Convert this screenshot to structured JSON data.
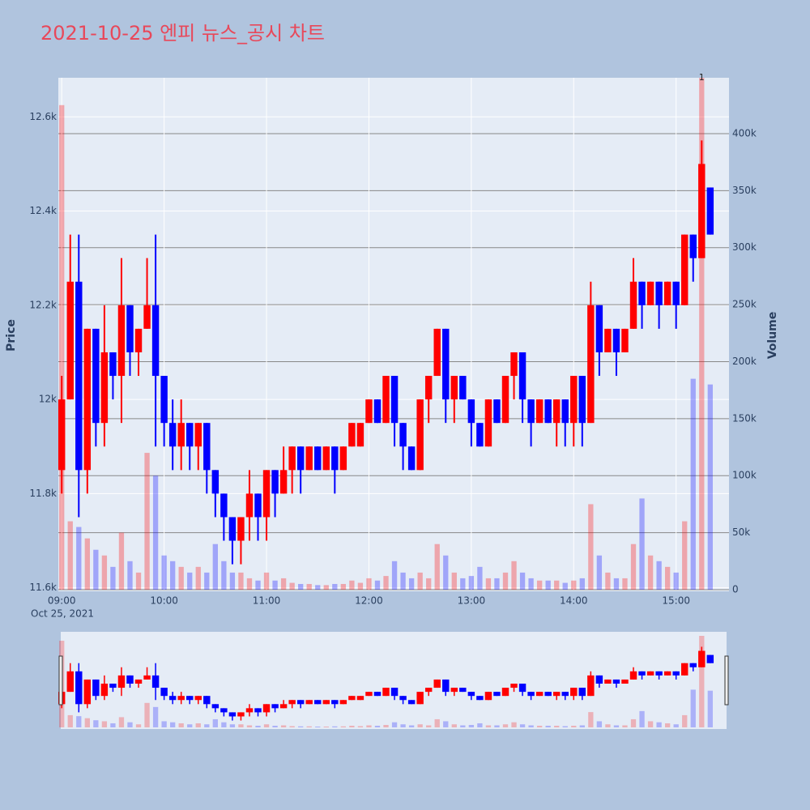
{
  "chart_data": {
    "type": "candlestick",
    "title": "2021-10-25 엔피 뉴스_공시 차트",
    "y_title": "Price",
    "y2_title": "Volume",
    "x_date_label": "Oct 25, 2021",
    "increasing_color": "#ff0000",
    "decreasing_color": "#0000ff",
    "rangeslider": true,
    "grid": true,
    "x": [
      "2021-10-25 09:00",
      "2021-10-25 09:05",
      "2021-10-25 09:10",
      "2021-10-25 09:15",
      "2021-10-25 09:20",
      "2021-10-25 09:25",
      "2021-10-25 09:30",
      "2021-10-25 09:35",
      "2021-10-25 09:40",
      "2021-10-25 09:45",
      "2021-10-25 09:50",
      "2021-10-25 09:55",
      "2021-10-25 10:00",
      "2021-10-25 10:05",
      "2021-10-25 10:10",
      "2021-10-25 10:15",
      "2021-10-25 10:20",
      "2021-10-25 10:25",
      "2021-10-25 10:30",
      "2021-10-25 10:35",
      "2021-10-25 10:40",
      "2021-10-25 10:45",
      "2021-10-25 10:50",
      "2021-10-25 10:55",
      "2021-10-25 11:00",
      "2021-10-25 11:05",
      "2021-10-25 11:10",
      "2021-10-25 11:15",
      "2021-10-25 11:20",
      "2021-10-25 11:25",
      "2021-10-25 11:30",
      "2021-10-25 11:35",
      "2021-10-25 11:40",
      "2021-10-25 11:45",
      "2021-10-25 11:50",
      "2021-10-25 11:55",
      "2021-10-25 12:00",
      "2021-10-25 12:05",
      "2021-10-25 12:10",
      "2021-10-25 12:15",
      "2021-10-25 12:20",
      "2021-10-25 12:25",
      "2021-10-25 12:30",
      "2021-10-25 12:35",
      "2021-10-25 12:40",
      "2021-10-25 12:45",
      "2021-10-25 12:50",
      "2021-10-25 12:55",
      "2021-10-25 13:00",
      "2021-10-25 13:05",
      "2021-10-25 13:10",
      "2021-10-25 13:15",
      "2021-10-25 13:20",
      "2021-10-25 13:25",
      "2021-10-25 13:30",
      "2021-10-25 13:35",
      "2021-10-25 13:40",
      "2021-10-25 13:45",
      "2021-10-25 13:50",
      "2021-10-25 13:55",
      "2021-10-25 14:00",
      "2021-10-25 14:05",
      "2021-10-25 14:10",
      "2021-10-25 14:15",
      "2021-10-25 14:20",
      "2021-10-25 14:25",
      "2021-10-25 14:30",
      "2021-10-25 14:35",
      "2021-10-25 14:40",
      "2021-10-25 14:45",
      "2021-10-25 14:50",
      "2021-10-25 14:55",
      "2021-10-25 15:00",
      "2021-10-25 15:05",
      "2021-10-25 15:10",
      "2021-10-25 15:15",
      "2021-10-25 15:20"
    ],
    "open": [
      11850,
      12000,
      12250,
      11850,
      12150,
      11950,
      12100,
      12050,
      12200,
      12100,
      12150,
      12200,
      12050,
      11950,
      11900,
      11950,
      11900,
      11950,
      11850,
      11800,
      11750,
      11700,
      11750,
      11800,
      11750,
      11850,
      11800,
      11850,
      11900,
      11850,
      11900,
      11850,
      11900,
      11850,
      11900,
      11900,
      11950,
      12000,
      11950,
      12050,
      11950,
      11900,
      11850,
      12000,
      12050,
      12150,
      12000,
      12050,
      12000,
      11950,
      11900,
      12000,
      11950,
      12050,
      12100,
      12000,
      11950,
      12000,
      11950,
      12000,
      11950,
      12050,
      11950,
      12200,
      12100,
      12150,
      12100,
      12150,
      12250,
      12200,
      12250,
      12200,
      12250,
      12200,
      12350,
      12300,
      12450
    ],
    "high": [
      12050,
      12350,
      12350,
      12150,
      12150,
      12200,
      12100,
      12300,
      12200,
      12150,
      12300,
      12350,
      12050,
      12000,
      12000,
      11950,
      11950,
      11950,
      11850,
      11800,
      11750,
      11750,
      11850,
      11800,
      11850,
      11850,
      11900,
      11900,
      11900,
      11900,
      11900,
      11900,
      11900,
      11900,
      11950,
      11950,
      12000,
      12000,
      12050,
      12050,
      11950,
      11900,
      12000,
      12050,
      12150,
      12150,
      12050,
      12050,
      12000,
      11950,
      12000,
      12000,
      12050,
      12100,
      12100,
      12000,
      12000,
      12000,
      12000,
      12000,
      12050,
      12050,
      12250,
      12200,
      12150,
      12150,
      12150,
      12300,
      12250,
      12250,
      12250,
      12250,
      12250,
      12350,
      12350,
      12550,
      12450
    ],
    "low": [
      11800,
      12000,
      11750,
      11800,
      11900,
      11900,
      12000,
      11950,
      12050,
      12050,
      12150,
      11900,
      11900,
      11850,
      11850,
      11850,
      11850,
      11800,
      11750,
      11700,
      11650,
      11650,
      11700,
      11700,
      11700,
      11750,
      11800,
      11800,
      11800,
      11850,
      11850,
      11850,
      11800,
      11850,
      11900,
      11900,
      11950,
      11950,
      11950,
      11900,
      11850,
      11850,
      11850,
      11950,
      12050,
      11950,
      11950,
      12000,
      11900,
      11900,
      11900,
      11950,
      11950,
      12000,
      11950,
      11900,
      11950,
      11950,
      11900,
      11900,
      11900,
      11900,
      11950,
      12050,
      12100,
      12050,
      12100,
      12150,
      12150,
      12200,
      12150,
      12200,
      12150,
      12200,
      12250,
      12300,
      12350
    ],
    "close": [
      12000,
      12250,
      11850,
      12150,
      11950,
      12100,
      12050,
      12200,
      12100,
      12150,
      12200,
      12050,
      11950,
      11900,
      11950,
      11900,
      11950,
      11850,
      11800,
      11750,
      11700,
      11750,
      11800,
      11750,
      11850,
      11800,
      11850,
      11900,
      11850,
      11900,
      11850,
      11900,
      11850,
      11900,
      11950,
      11950,
      12000,
      11950,
      12050,
      11950,
      11900,
      11850,
      12000,
      12050,
      12150,
      12000,
      12050,
      12000,
      11950,
      11900,
      12000,
      11950,
      12050,
      12100,
      12000,
      11950,
      12000,
      11950,
      12000,
      11950,
      12050,
      11950,
      12200,
      12100,
      12150,
      12100,
      12150,
      12250,
      12200,
      12250,
      12200,
      12250,
      12200,
      12350,
      12300,
      12500,
      12350
    ],
    "volume": [
      425000,
      60000,
      55000,
      45000,
      35000,
      30000,
      20000,
      50000,
      25000,
      15000,
      120000,
      100000,
      30000,
      25000,
      20000,
      15000,
      20000,
      15000,
      40000,
      25000,
      15000,
      15000,
      10000,
      8000,
      15000,
      8000,
      10000,
      6000,
      5000,
      5000,
      4000,
      4000,
      5000,
      5000,
      8000,
      6000,
      10000,
      8000,
      12000,
      25000,
      15000,
      10000,
      15000,
      10000,
      40000,
      30000,
      15000,
      10000,
      12000,
      20000,
      10000,
      10000,
      15000,
      25000,
      15000,
      10000,
      8000,
      8000,
      8000,
      6000,
      8000,
      10000,
      75000,
      30000,
      15000,
      10000,
      10000,
      40000,
      80000,
      30000,
      25000,
      20000,
      15000,
      60000,
      185000,
      449000,
      180000
    ],
    "xlim": [
      "2021-10-25 08:58",
      "2021-10-25 15:31"
    ],
    "xticks": [
      {
        "value": "2021-10-25 09:00",
        "label": "09:00"
      },
      {
        "value": "2021-10-25 10:00",
        "label": "10:00"
      },
      {
        "value": "2021-10-25 11:00",
        "label": "11:00"
      },
      {
        "value": "2021-10-25 12:00",
        "label": "12:00"
      },
      {
        "value": "2021-10-25 13:00",
        "label": "13:00"
      },
      {
        "value": "2021-10-25 14:00",
        "label": "14:00"
      },
      {
        "value": "2021-10-25 15:00",
        "label": "15:00"
      }
    ],
    "ylim": [
      11596,
      12683
    ],
    "yticks": [
      {
        "value": 11600,
        "label": "11.6k"
      },
      {
        "value": 11800,
        "label": "11.8k"
      },
      {
        "value": 12000,
        "label": "12k"
      },
      {
        "value": 12200,
        "label": "12.2k"
      },
      {
        "value": 12400,
        "label": "12.4k"
      },
      {
        "value": 12600,
        "label": "12.6k"
      }
    ],
    "y2lim": [
      0,
      449000
    ],
    "y2ticks": [
      0,
      {
        "value": 50000,
        "label": "50k"
      },
      {
        "value": 100000,
        "label": "100k"
      },
      {
        "value": 150000,
        "label": "150k"
      },
      {
        "value": 200000,
        "label": "200k"
      },
      {
        "value": 250000,
        "label": "250k"
      },
      {
        "value": 300000,
        "label": "300k"
      },
      {
        "value": 350000,
        "label": "350k"
      },
      {
        "value": 400000,
        "label": "400k"
      }
    ],
    "annotations": [
      {
        "x": "2021-10-25 15:15",
        "text": "1"
      }
    ]
  }
}
